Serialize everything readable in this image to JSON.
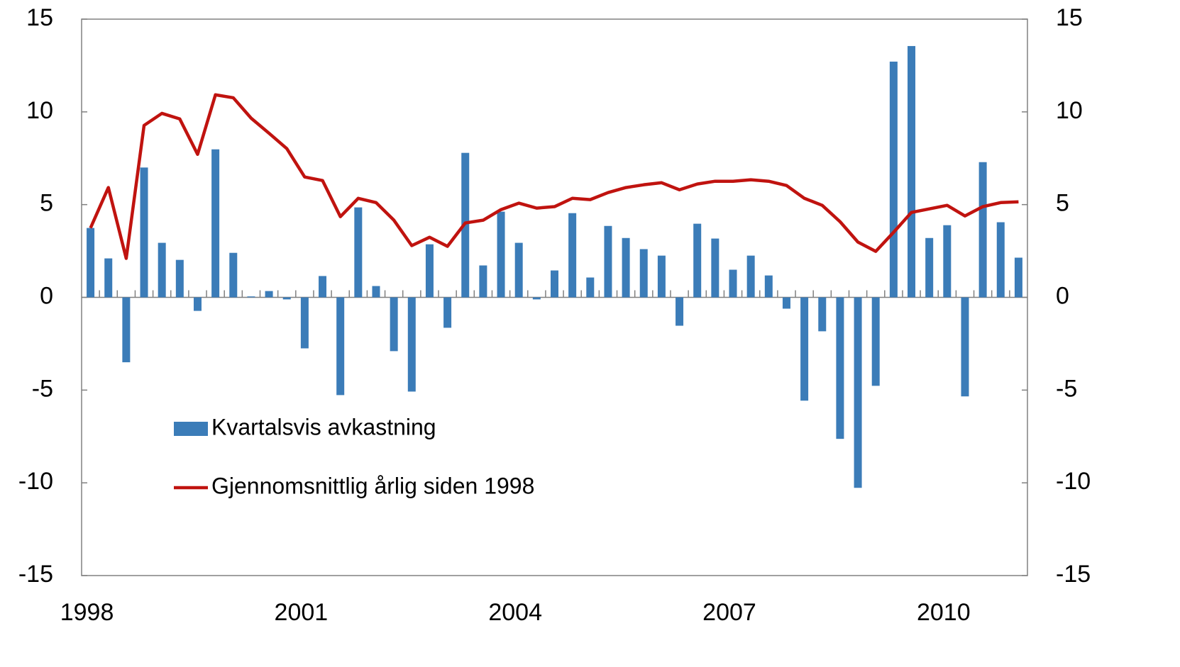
{
  "chart_data": {
    "type": "bar",
    "categories": [
      "1998",
      null,
      null,
      null,
      null,
      null,
      null,
      null,
      null,
      null,
      null,
      null,
      "2001",
      null,
      null,
      null,
      null,
      null,
      null,
      null,
      null,
      null,
      null,
      null,
      "2004",
      null,
      null,
      null,
      null,
      null,
      null,
      null,
      null,
      null,
      null,
      null,
      "2007",
      null,
      null,
      null,
      null,
      null,
      null,
      null,
      null,
      null,
      null,
      null,
      "2010",
      null,
      null,
      null,
      null
    ],
    "series": [
      {
        "name": "Kvartalsvis avkastning",
        "type": "bar",
        "color": "#3b7cb8",
        "values": [
          3.74,
          2.1,
          -3.5,
          7.0,
          2.94,
          2.02,
          -0.73,
          7.98,
          2.4,
          0.05,
          0.34,
          -0.11,
          -2.75,
          1.15,
          -5.27,
          4.85,
          0.61,
          -2.9,
          -5.08,
          2.86,
          -1.64,
          7.79,
          1.72,
          4.62,
          2.94,
          -0.11,
          1.45,
          4.54,
          1.07,
          3.85,
          3.2,
          2.6,
          2.25,
          -1.53,
          3.97,
          3.17,
          1.49,
          2.25,
          1.18,
          -0.61,
          -5.57,
          -1.83,
          -7.63,
          -10.27,
          -4.77,
          12.71,
          13.55,
          3.2,
          3.89,
          -5.34,
          7.29,
          4.05,
          2.14
        ]
      },
      {
        "name": "Gjennomsnittlig årlig siden 1998",
        "type": "line",
        "color": "#c0130f",
        "values": [
          3.74,
          5.92,
          2.1,
          9.27,
          9.92,
          9.62,
          7.71,
          10.92,
          10.76,
          9.66,
          8.85,
          8.02,
          6.49,
          6.3,
          4.35,
          5.34,
          5.11,
          4.16,
          2.79,
          3.24,
          2.75,
          4.01,
          4.16,
          4.73,
          5.08,
          4.81,
          4.89,
          5.34,
          5.27,
          5.65,
          5.92,
          6.07,
          6.18,
          5.8,
          6.11,
          6.26,
          6.26,
          6.34,
          6.26,
          6.03,
          5.34,
          4.96,
          4.08,
          2.98,
          2.48,
          3.51,
          4.58,
          4.77,
          4.96,
          4.39,
          4.89,
          5.11,
          5.15
        ]
      }
    ],
    "ylim": [
      -15,
      15
    ],
    "yticks": [
      -15,
      -10,
      -5,
      0,
      5,
      10,
      15
    ],
    "y2lim": [
      -15,
      15
    ],
    "y2ticks": [
      -15,
      -10,
      -5,
      0,
      5,
      10,
      15
    ],
    "legend_position": "lower left",
    "grid": false
  }
}
